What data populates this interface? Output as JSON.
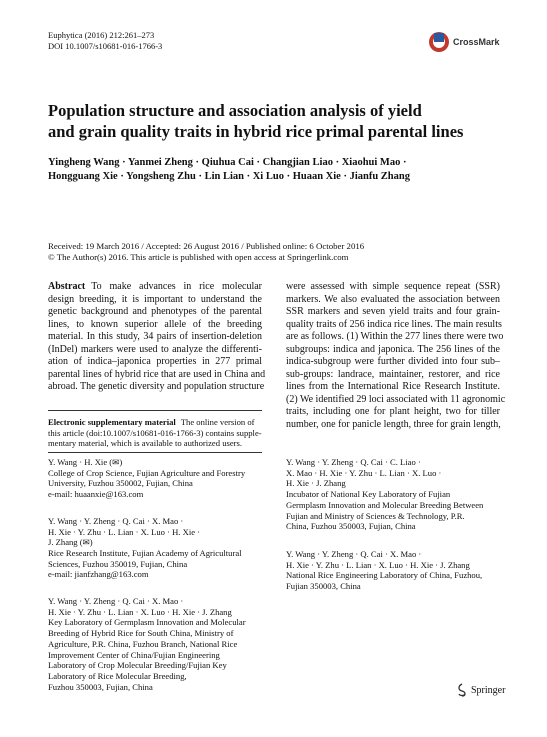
{
  "header": {
    "journal": "Euphytica (2016) 212:261–273",
    "doi": "DOI 10.1007/s10681-016-1766-3",
    "crossmark": "CrossMark"
  },
  "title": [
    "Population structure and association analysis of yield",
    "and grain quality traits in hybrid rice primal parental lines"
  ],
  "authors": [
    "Yingheng Wang · Yanmei Zheng · Qiuhua Cai · Changjian Liao · Xiaohui Mao ·",
    "Hongguang Xie · Yongsheng Zhu · Lin Lian · Xi Luo · Huaan Xie · Jianfu Zhang"
  ],
  "dates": "Received: 19 March 2016 / Accepted: 26 August 2016 / Published online: 6 October 2016",
  "copyright": "© The Author(s) 2016. This article is published with open access at Springerlink.com",
  "abstract": {
    "label": "Abstract",
    "left": [
      "To make advances in rice molecular",
      "design breeding, it is important to understand the",
      "genetic background and phenotypes of the parental",
      "lines, to known superior allele of the breeding",
      "material. In this study, 34 pairs of insertion-deletion",
      "(InDel) markers were used to analyze the differenti-",
      "ation of indica–japonica properties in 277 primal",
      "parental lines of hybrid rice that are used in China and",
      "abroad. The genetic diversity and population structure"
    ],
    "right": [
      "were assessed with simple sequence repeat (SSR)",
      "markers. We also evaluated the association between",
      "SSR markers and seven yield traits and four grain-",
      "quality traits of 256 indica rice lines. The main results",
      "are as follows. (1) Within the 277 lines there were two",
      "subgroups: indica and japonica. The 256 lines of the",
      "indica-subgroup were further divided into four sub–",
      "sub-groups: landrace, maintainer, restorer, and rice",
      "lines from the International Rice Research Institute.",
      "(2) We identified 29 loci associated with 11 agronomic",
      "traits, including one for plant height, two for tiller",
      "number, one for panicle length, three for grain length,"
    ]
  },
  "esm": {
    "label": "Electronic supplementary material",
    "lines": [
      "The online version of",
      "this article (doi:10.1007/s10681-016-1766-3) contains supple-",
      "mentary material, which is available to authorized users."
    ]
  },
  "affiliations": [
    [
      "Y. Wang · H. Xie (✉)",
      "College of Crop Science, Fujian Agriculture and Forestry",
      "University, Fuzhou 350002, Fujian, China",
      "e-mail: huaanxie@163.com"
    ],
    [
      "Y. Wang · Y. Zheng · Q. Cai · X. Mao ·",
      "H. Xie · Y. Zhu · L. Lian · X. Luo · H. Xie ·",
      "J. Zhang (✉)",
      "Rice Research Institute, Fujian Academy of Agricultural",
      "Sciences, Fuzhou 350019, Fujian, China",
      "e-mail: jianfzhang@163.com"
    ],
    [
      "Y. Wang · Y. Zheng · Q. Cai · X. Mao ·",
      "H. Xie · Y. Zhu · L. Lian · X. Luo · H. Xie · J. Zhang",
      "Key Laboratory of Germplasm Innovation and Molecular",
      "Breeding of Hybrid Rice for South China, Ministry of",
      "Agriculture, P.R. China, Fuzhou Branch, National Rice",
      "Improvement Center of China/Fujian Engineering",
      "Laboratory of Crop Molecular Breeding/Fujian Key",
      "Laboratory of Rice Molecular Breeding,",
      "Fuzhou 350003, Fujian, China"
    ],
    [
      "Y. Wang · Y. Zheng · Q. Cai · C. Liao ·",
      "X. Mao · H. Xie · Y. Zhu · L. Lian · X. Luo ·",
      "H. Xie · J. Zhang",
      "Incubator of National Key Laboratory of Fujian",
      "Germplasm Innovation and Molecular Breeding Between",
      "Fujian and Ministry of Sciences & Technology, P.R.",
      "China, Fuzhou 350003, Fujian, China"
    ],
    [
      "Y. Wang · Y. Zheng · Q. Cai · X. Mao ·",
      "H. Xie · Y. Zhu · L. Lian · X. Luo · H. Xie · J. Zhang",
      "National Rice Engineering Laboratory of China, Fuzhou,",
      "Fujian 350003, China"
    ]
  ],
  "footer": {
    "publisher": "Springer"
  }
}
